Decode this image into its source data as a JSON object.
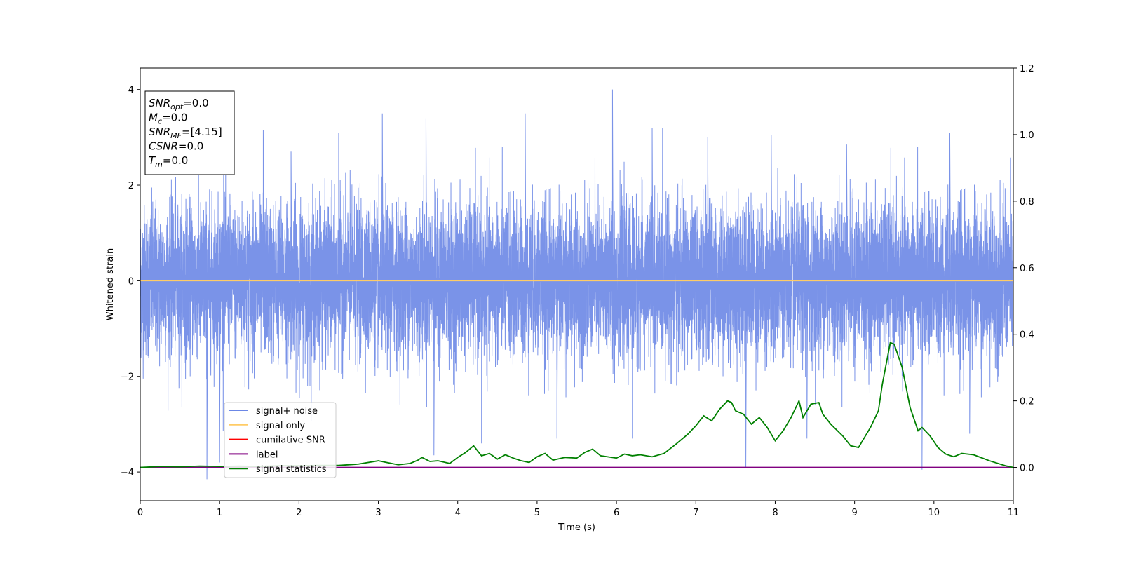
{
  "chart_data": {
    "type": "line",
    "xlabel": "Time (s)",
    "ylabel": "Whitened strain",
    "xlim": [
      0,
      11
    ],
    "ylim_left": [
      -4.6,
      4.45
    ],
    "ylim_right": [
      -0.1,
      1.2
    ],
    "x_ticks": [
      "0",
      "1",
      "2",
      "3",
      "4",
      "5",
      "6",
      "7",
      "8",
      "9",
      "10",
      "11"
    ],
    "y_ticks_left": [
      "−4",
      "−2",
      "0",
      "2",
      "4"
    ],
    "y_ticks_right": [
      "0.0",
      "0.2",
      "0.4",
      "0.6",
      "0.8",
      "1.0",
      "1.2"
    ],
    "info_box": [
      {
        "main": "SNR",
        "sub": "opt",
        "rest": "=0.0"
      },
      {
        "main": "M",
        "sub": "c",
        "rest": "=0.0"
      },
      {
        "main": "SNR",
        "sub": "MF",
        "rest": "=[4.15]"
      },
      {
        "main": "CSNR",
        "sub": "",
        "rest": "=0.0"
      },
      {
        "main": "T",
        "sub": "m",
        "rest": "=0.0"
      }
    ],
    "legend_position": "lower-left",
    "legend": [
      {
        "label": "signal+ noise",
        "color": "#6b87e6"
      },
      {
        "label": "signal only",
        "color": "#ffcc66"
      },
      {
        "label": "cumilative SNR",
        "color": "#ff0000"
      },
      {
        "label": "label",
        "color": "#800080"
      },
      {
        "label": "signal statistics",
        "color": "#008000"
      }
    ],
    "series": [
      {
        "name": "signal+ noise",
        "axis": "left",
        "color": "#6b87e6",
        "description": "dense whitened noise, roughly symmetric about 0, typical band -2 to 2, peaks to about 4.0 near t=5.95 and down to about -4.15 near t=0.84",
        "envelope_peaks": [
          [
            0.84,
            -4.15
          ],
          [
            1.0,
            -3.8
          ],
          [
            1.05,
            3.2
          ],
          [
            1.55,
            3.15
          ],
          [
            1.9,
            2.7
          ],
          [
            2.5,
            3.1
          ],
          [
            3.05,
            3.5
          ],
          [
            3.6,
            3.4
          ],
          [
            3.7,
            -3.65
          ],
          [
            4.3,
            -3.4
          ],
          [
            4.85,
            3.5
          ],
          [
            5.25,
            -3.3
          ],
          [
            5.95,
            4.0
          ],
          [
            6.2,
            -3.3
          ],
          [
            6.45,
            3.2
          ],
          [
            7.15,
            3.0
          ],
          [
            7.63,
            -3.9
          ],
          [
            7.95,
            3.05
          ],
          [
            8.4,
            -3.3
          ],
          [
            8.9,
            2.85
          ],
          [
            9.85,
            -3.95
          ],
          [
            10.2,
            3.1
          ],
          [
            10.45,
            -3.2
          ]
        ]
      },
      {
        "name": "signal only",
        "axis": "left",
        "color": "#ffcc66",
        "x": [
          0,
          11
        ],
        "y": [
          0,
          0
        ]
      },
      {
        "name": "label",
        "axis": "right",
        "color": "#800080",
        "x": [
          0,
          11
        ],
        "y": [
          0,
          0
        ]
      },
      {
        "name": "signal statistics",
        "axis": "right",
        "color": "#008000",
        "x": [
          0,
          0.25,
          0.5,
          0.75,
          1.0,
          1.25,
          1.5,
          1.75,
          2.0,
          2.25,
          2.5,
          2.75,
          3.0,
          3.1,
          3.25,
          3.4,
          3.5,
          3.55,
          3.65,
          3.75,
          3.9,
          4.0,
          4.1,
          4.2,
          4.3,
          4.4,
          4.5,
          4.6,
          4.7,
          4.8,
          4.9,
          5.0,
          5.1,
          5.2,
          5.35,
          5.5,
          5.6,
          5.7,
          5.8,
          6.0,
          6.1,
          6.2,
          6.3,
          6.45,
          6.6,
          6.75,
          6.9,
          7.0,
          7.1,
          7.2,
          7.3,
          7.4,
          7.45,
          7.5,
          7.6,
          7.7,
          7.8,
          7.9,
          8.0,
          8.1,
          8.2,
          8.3,
          8.35,
          8.45,
          8.55,
          8.6,
          8.7,
          8.85,
          8.95,
          9.05,
          9.1,
          9.2,
          9.3,
          9.35,
          9.45,
          9.5,
          9.6,
          9.7,
          9.8,
          9.85,
          9.95,
          10.05,
          10.15,
          10.25,
          10.35,
          10.5,
          10.7,
          10.9,
          11.0
        ],
        "y": [
          0.0,
          0.003,
          0.002,
          0.004,
          0.003,
          0.004,
          0.003,
          0.005,
          0.005,
          0.006,
          0.006,
          0.01,
          0.02,
          0.015,
          0.008,
          0.012,
          0.022,
          0.03,
          0.018,
          0.02,
          0.012,
          0.03,
          0.045,
          0.065,
          0.035,
          0.042,
          0.025,
          0.038,
          0.028,
          0.02,
          0.015,
          0.032,
          0.042,
          0.022,
          0.03,
          0.028,
          0.045,
          0.055,
          0.035,
          0.028,
          0.04,
          0.035,
          0.038,
          0.032,
          0.042,
          0.07,
          0.1,
          0.125,
          0.155,
          0.14,
          0.175,
          0.2,
          0.195,
          0.17,
          0.16,
          0.13,
          0.15,
          0.12,
          0.08,
          0.11,
          0.15,
          0.2,
          0.15,
          0.19,
          0.195,
          0.16,
          0.13,
          0.095,
          0.065,
          0.06,
          0.08,
          0.12,
          0.17,
          0.25,
          0.375,
          0.37,
          0.3,
          0.18,
          0.11,
          0.12,
          0.095,
          0.06,
          0.04,
          0.032,
          0.042,
          0.038,
          0.02,
          0.005,
          0.0
        ]
      }
    ]
  }
}
